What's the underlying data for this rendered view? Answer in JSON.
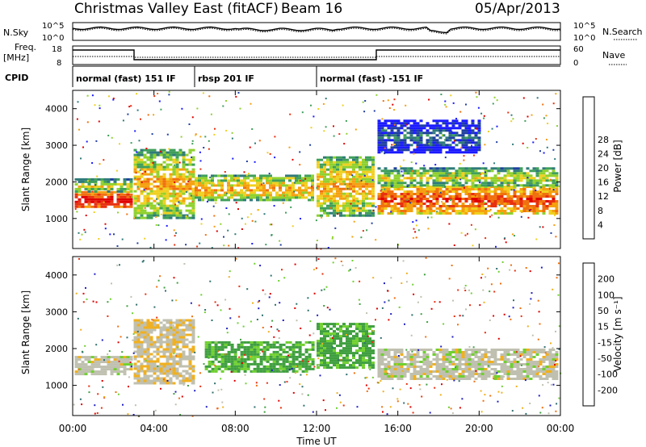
{
  "header": {
    "title": "Christmas Valley East (fitACF)",
    "beam": "Beam 16",
    "date": "05/Apr/2013"
  },
  "noise_panel": {
    "left_label": "N.Sky",
    "left_ticks": [
      "10^5",
      "10^0"
    ],
    "right_ticks": [
      "10^5",
      "10^0"
    ],
    "right_label": "N.Search"
  },
  "freq_panel": {
    "left_label_1": "Freq.",
    "left_label_2": "[MHz]",
    "left_ticks": [
      "18",
      "8"
    ],
    "right_ticks": [
      "60",
      "0"
    ],
    "right_label": "Nave"
  },
  "cpid_panel": {
    "label": "CPID",
    "segments": [
      {
        "label": "normal (fast) 151 IF",
        "start_hour": 0.0
      },
      {
        "label": "rbsp 201 IF",
        "start_hour": 6.0
      },
      {
        "label": "normal (fast) -151 IF",
        "start_hour": 12.0
      }
    ]
  },
  "chart_data": [
    {
      "type": "heatmap",
      "panel": "power",
      "ylabel": "Slant Range [km]",
      "yticks": [
        "1000",
        "2000",
        "3000",
        "4000"
      ],
      "ylim": [
        180,
        4500
      ],
      "xlim": [
        0,
        24
      ],
      "colorbar_label": "Power [dB]",
      "colorbar_ticks": [
        "4",
        "8",
        "12",
        "16",
        "20",
        "24",
        "28"
      ],
      "colorbar_colors": [
        "#1a1aff",
        "#1f3fa0",
        "#2f7a7a",
        "#3f9f5a",
        "#8fd12f",
        "#f0d020",
        "#f5a010",
        "#f07010",
        "#e83010",
        "#e00000"
      ],
      "regions": [
        {
          "x": [
            0.1,
            2.9
          ],
          "y": [
            1300,
            1750
          ],
          "level": 28
        },
        {
          "x": [
            0.1,
            2.9
          ],
          "y": [
            1750,
            2100
          ],
          "level": 14
        },
        {
          "x": [
            3.0,
            6.0
          ],
          "y": [
            1000,
            2900
          ],
          "level": 20
        },
        {
          "x": [
            6.0,
            11.8
          ],
          "y": [
            1500,
            2200
          ],
          "level": 18
        },
        {
          "x": [
            12.0,
            14.8
          ],
          "y": [
            1100,
            2700
          ],
          "level": 20
        },
        {
          "x": [
            15.0,
            23.9
          ],
          "y": [
            1150,
            1900
          ],
          "level": 26
        },
        {
          "x": [
            15.0,
            23.9
          ],
          "y": [
            1900,
            2400
          ],
          "level": 14
        },
        {
          "x": [
            15.0,
            20.0
          ],
          "y": [
            2800,
            3700
          ],
          "level": 6
        }
      ]
    },
    {
      "type": "heatmap",
      "panel": "velocity",
      "ylabel": "Slant Range [km]",
      "yticks": [
        "1000",
        "2000",
        "3000",
        "4000"
      ],
      "ylim": [
        180,
        4500
      ],
      "xlim": [
        0,
        24
      ],
      "xticks": [
        "00:00",
        "04:00",
        "08:00",
        "12:00",
        "16:00",
        "20:00",
        "00:00"
      ],
      "xlabel": "Time UT",
      "colorbar_label": "Velocity [m s⁻¹]",
      "colorbar_ticks": [
        "200",
        "100",
        "50",
        "15",
        "-15",
        "-50",
        "-100",
        "-200"
      ],
      "colorbar_colors": [
        "#2020c0",
        "#2f6f6f",
        "#3f9f3f",
        "#70d030",
        "#c0c0b0",
        "#f0b020",
        "#f07010",
        "#e83010",
        "#e00000"
      ],
      "regions": [
        {
          "x": [
            0.1,
            2.9
          ],
          "y": [
            1300,
            1800
          ],
          "velocity": 0
        },
        {
          "x": [
            3.0,
            6.0
          ],
          "y": [
            1050,
            2800
          ],
          "velocity": -10
        },
        {
          "x": [
            6.5,
            11.8
          ],
          "y": [
            1400,
            2200
          ],
          "velocity": 40
        },
        {
          "x": [
            12.0,
            14.8
          ],
          "y": [
            1500,
            2700
          ],
          "velocity": 40
        },
        {
          "x": [
            15.0,
            23.9
          ],
          "y": [
            1200,
            2000
          ],
          "velocity": 0
        }
      ]
    }
  ]
}
